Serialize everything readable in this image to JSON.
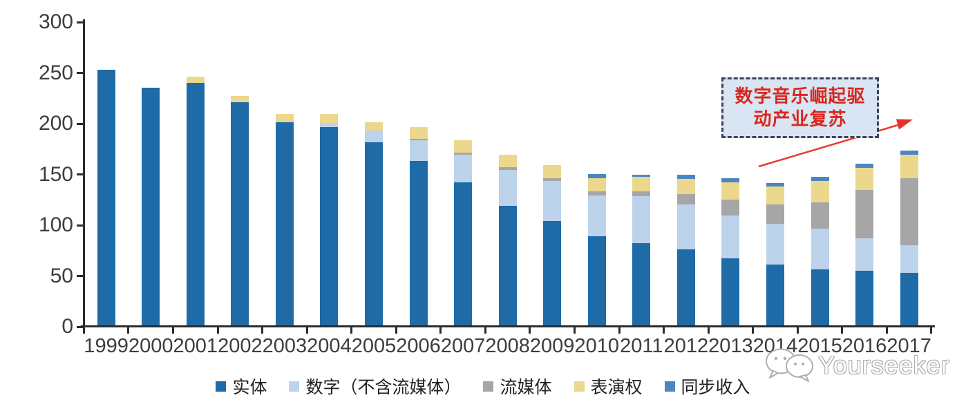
{
  "chart_data": {
    "type": "bar",
    "stacked": true,
    "title": "",
    "categories": [
      "1999",
      "2000",
      "2001",
      "2002",
      "2003",
      "2004",
      "2005",
      "2006",
      "2007",
      "2008",
      "2009",
      "2010",
      "2011",
      "2012",
      "2013",
      "2014",
      "2015",
      "2016",
      "2017"
    ],
    "series": [
      {
        "name": "实体",
        "color": "#1e6ba8",
        "values": [
          252,
          234,
          239,
          220,
          200,
          195,
          180,
          162,
          141,
          118,
          103,
          88,
          81,
          75,
          66,
          60,
          55,
          54,
          52
        ]
      },
      {
        "name": "数字（不含流媒体）",
        "color": "#bcd3eb",
        "values": [
          0,
          0,
          0,
          0,
          0,
          4,
          12,
          20,
          27,
          35,
          39,
          40,
          46,
          44,
          42,
          40,
          40,
          32,
          27
        ]
      },
      {
        "name": "流媒体",
        "color": "#a6a6a6",
        "values": [
          0,
          0,
          0,
          0,
          0,
          0,
          0,
          2,
          2,
          3,
          3,
          4,
          5,
          10,
          16,
          19,
          26,
          47,
          66
        ]
      },
      {
        "name": "表演权",
        "color": "#ebd88d",
        "values": [
          0,
          0,
          6,
          6,
          8,
          9,
          8,
          11,
          12,
          12,
          13,
          13,
          14,
          15,
          17,
          18,
          21,
          22,
          23
        ]
      },
      {
        "name": "同步收入",
        "color": "#4b86c2",
        "values": [
          0,
          0,
          0,
          0,
          0,
          0,
          0,
          0,
          0,
          0,
          0,
          4,
          2,
          4,
          4,
          3,
          4,
          4,
          4
        ]
      }
    ],
    "ylim": [
      0,
      300
    ],
    "yticks": [
      0,
      50,
      100,
      150,
      200,
      250,
      300
    ],
    "grid": false,
    "legend_position": "bottom"
  },
  "annotation": {
    "line1": "数字音乐崛起驱",
    "line2": "动产业复苏",
    "text_color": "#d9271e",
    "box_fill": "#d9e5f3",
    "border_color": "#39455e",
    "arrow_color": "#ea3b32"
  },
  "watermark": {
    "text": "Yourseeker",
    "icon": "wechat-icon"
  },
  "colors": {
    "axis": "#2b2b2b",
    "axis_label": "#3d3d3d",
    "legend_text": "#212121"
  }
}
